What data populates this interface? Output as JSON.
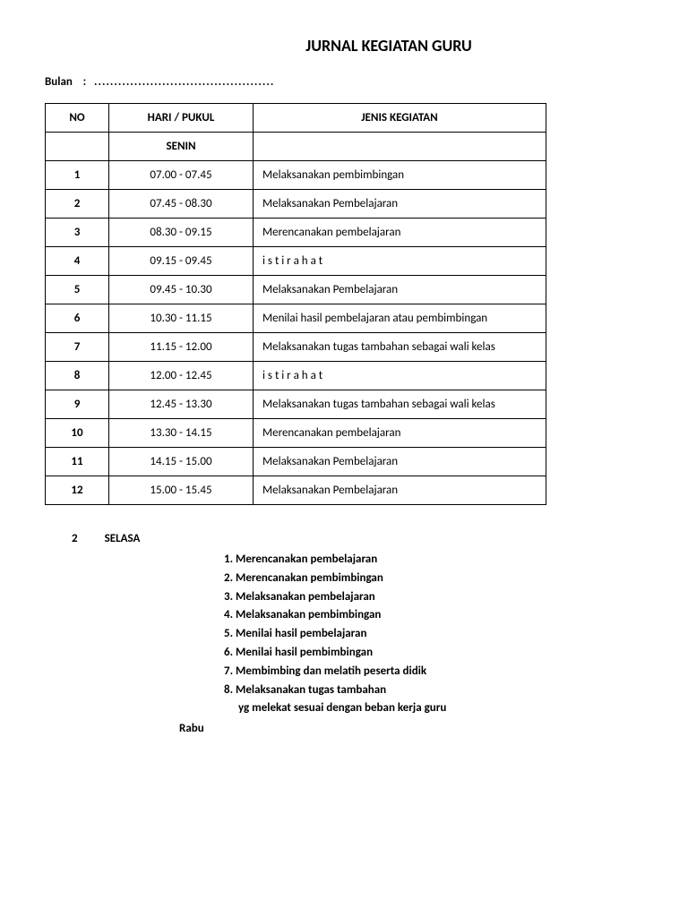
{
  "title": "JURNAL KEGIATAN GURU",
  "bulan_label": "Bulan",
  "bulan_sep": ":",
  "bulan_dots": ".............................................",
  "table": {
    "columns": [
      "NO",
      "HARI / PUKUL",
      "JENIS KEGIATAN"
    ],
    "day_row": {
      "no": "",
      "time": "SENIN",
      "activity": ""
    },
    "rows": [
      {
        "no": "1",
        "time": "07.00 - 07.45",
        "activity": "Melaksanakan pembimbingan"
      },
      {
        "no": "2",
        "time": "07.45 - 08.30",
        "activity": "Melaksanakan  Pembelajaran"
      },
      {
        "no": "3",
        "time": "08.30 - 09.15",
        "activity": "Merencanakan pembelajaran"
      },
      {
        "no": "4",
        "time": "09.15 - 09.45",
        "activity": "i s t i r a h a t"
      },
      {
        "no": "5",
        "time": "09.45 - 10.30",
        "activity": "Melaksanakan  Pembelajaran"
      },
      {
        "no": "6",
        "time": "10.30 - 11.15",
        "activity": "Menilai hasil pembelajaran atau pembimbingan"
      },
      {
        "no": "7",
        "time": "11.15 - 12.00",
        "activity": "Melaksanakan tugas tambahan sebagai wali kelas"
      },
      {
        "no": "8",
        "time": "12.00 - 12.45",
        "activity": "i s t i r a h a t"
      },
      {
        "no": "9",
        "time": "12.45 - 13.30",
        "activity": "Melaksanakan tugas tambahan sebagai wali kelas"
      },
      {
        "no": "10",
        "time": "13.30 - 14.15",
        "activity": "Merencanakan pembelajaran"
      },
      {
        "no": "11",
        "time": "14.15 - 15.00",
        "activity": "Melaksanakan  Pembelajaran"
      },
      {
        "no": "12",
        "time": "15.00 - 15.45",
        "activity": "Melaksanakan  Pembelajaran"
      }
    ]
  },
  "selasa": {
    "num": "2",
    "label": "SELASA",
    "items": [
      "1. Merencanakan pembelajaran",
      "2. Merencanakan   pembimbingan",
      "3. Melaksanakan pembelajaran",
      "4. Melaksanakan   pembimbingan",
      "5. Menilai hasil pembelajaran",
      "6. Menilai hasil pembimbingan",
      "7. Membimbing dan melatih peserta didik",
      "8. Melaksanakan tugas tambahan"
    ],
    "sub": "yg melekat sesuai dengan beban kerja guru"
  },
  "rabu": "Rabu"
}
